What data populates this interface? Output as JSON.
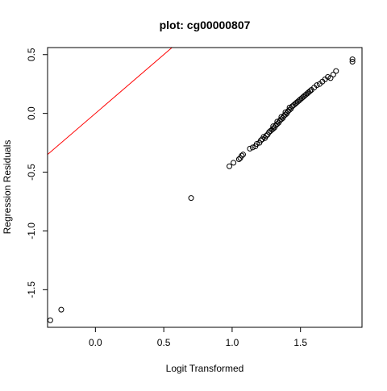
{
  "chart_data": {
    "type": "scatter",
    "title": "plot: cg00000807",
    "xlabel": "Logit Transformed",
    "ylabel": "Regression Residuals",
    "xlim": [
      -0.35,
      1.95
    ],
    "ylim": [
      -1.82,
      0.56
    ],
    "x_ticks": [
      0.0,
      0.5,
      1.0,
      1.5
    ],
    "x_tick_labels": [
      "0.0",
      "0.5",
      "1.0",
      "1.5"
    ],
    "y_ticks": [
      -1.5,
      -1.0,
      -0.5,
      0.0,
      0.5
    ],
    "y_tick_labels": [
      "-1.5",
      "-1.0",
      "-0.5",
      "0.0",
      "0.5"
    ],
    "grid": false,
    "point_color": "#000000",
    "reference_line": {
      "intercept": 0,
      "slope": 1,
      "color": "#ff0000"
    },
    "points": [
      {
        "x": -0.25,
        "y": -1.67
      },
      {
        "x": -0.33,
        "y": -1.76
      },
      {
        "x": 0.7,
        "y": -0.72
      },
      {
        "x": 0.98,
        "y": -0.45
      },
      {
        "x": 1.01,
        "y": -0.42
      },
      {
        "x": 1.05,
        "y": -0.39
      },
      {
        "x": 1.06,
        "y": -0.38
      },
      {
        "x": 1.07,
        "y": -0.36
      },
      {
        "x": 1.08,
        "y": -0.35
      },
      {
        "x": 1.13,
        "y": -0.3
      },
      {
        "x": 1.15,
        "y": -0.29
      },
      {
        "x": 1.17,
        "y": -0.28
      },
      {
        "x": 1.18,
        "y": -0.26
      },
      {
        "x": 1.2,
        "y": -0.25
      },
      {
        "x": 1.21,
        "y": -0.23
      },
      {
        "x": 1.22,
        "y": -0.22
      },
      {
        "x": 1.23,
        "y": -0.2
      },
      {
        "x": 1.24,
        "y": -0.21
      },
      {
        "x": 1.25,
        "y": -0.19
      },
      {
        "x": 1.26,
        "y": -0.18
      },
      {
        "x": 1.27,
        "y": -0.16
      },
      {
        "x": 1.28,
        "y": -0.15
      },
      {
        "x": 1.29,
        "y": -0.14
      },
      {
        "x": 1.3,
        "y": -0.13
      },
      {
        "x": 1.3,
        "y": -0.11
      },
      {
        "x": 1.31,
        "y": -0.12
      },
      {
        "x": 1.32,
        "y": -0.1
      },
      {
        "x": 1.33,
        "y": -0.09
      },
      {
        "x": 1.33,
        "y": -0.07
      },
      {
        "x": 1.34,
        "y": -0.08
      },
      {
        "x": 1.35,
        "y": -0.06
      },
      {
        "x": 1.36,
        "y": -0.05
      },
      {
        "x": 1.36,
        "y": -0.03
      },
      {
        "x": 1.37,
        "y": -0.04
      },
      {
        "x": 1.38,
        "y": -0.02
      },
      {
        "x": 1.39,
        "y": -0.01
      },
      {
        "x": 1.39,
        "y": 0.01
      },
      {
        "x": 1.4,
        "y": 0.0
      },
      {
        "x": 1.41,
        "y": 0.02
      },
      {
        "x": 1.42,
        "y": 0.03
      },
      {
        "x": 1.42,
        "y": 0.05
      },
      {
        "x": 1.43,
        "y": 0.04
      },
      {
        "x": 1.44,
        "y": 0.06
      },
      {
        "x": 1.45,
        "y": 0.07
      },
      {
        "x": 1.46,
        "y": 0.08
      },
      {
        "x": 1.47,
        "y": 0.09
      },
      {
        "x": 1.48,
        "y": 0.1
      },
      {
        "x": 1.49,
        "y": 0.11
      },
      {
        "x": 1.5,
        "y": 0.12
      },
      {
        "x": 1.51,
        "y": 0.13
      },
      {
        "x": 1.52,
        "y": 0.14
      },
      {
        "x": 1.53,
        "y": 0.15
      },
      {
        "x": 1.54,
        "y": 0.16
      },
      {
        "x": 1.55,
        "y": 0.17
      },
      {
        "x": 1.56,
        "y": 0.18
      },
      {
        "x": 1.57,
        "y": 0.19
      },
      {
        "x": 1.58,
        "y": 0.2
      },
      {
        "x": 1.6,
        "y": 0.22
      },
      {
        "x": 1.62,
        "y": 0.24
      },
      {
        "x": 1.64,
        "y": 0.25
      },
      {
        "x": 1.66,
        "y": 0.27
      },
      {
        "x": 1.68,
        "y": 0.29
      },
      {
        "x": 1.7,
        "y": 0.31
      },
      {
        "x": 1.72,
        "y": 0.3
      },
      {
        "x": 1.74,
        "y": 0.33
      },
      {
        "x": 1.76,
        "y": 0.36
      },
      {
        "x": 1.88,
        "y": 0.46
      },
      {
        "x": 1.88,
        "y": 0.44
      }
    ]
  }
}
